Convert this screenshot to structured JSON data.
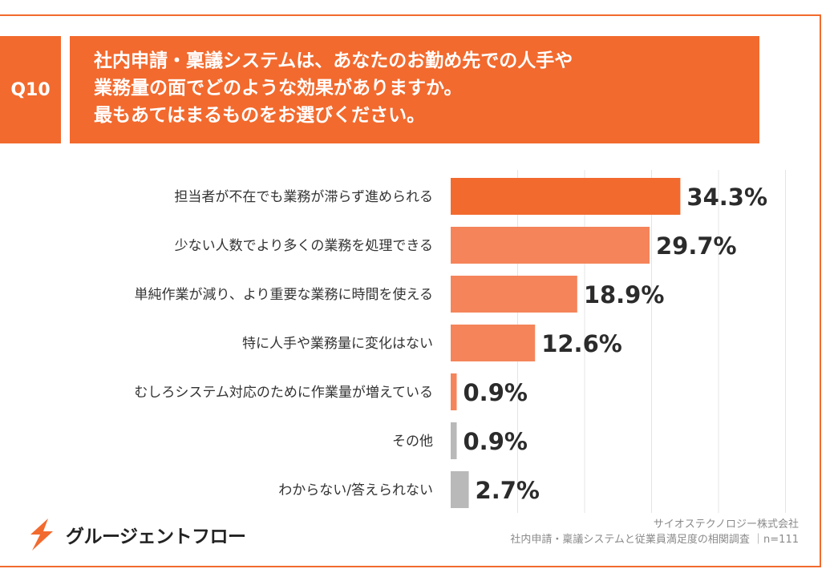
{
  "question": {
    "tag": "Q10",
    "lines": [
      "社内申請・稟議システムは、あなたのお勤め先での人手や",
      "業務量の面でどのような効果がありますか。",
      "最もあてはまるものをお選びください。"
    ]
  },
  "chart_data": {
    "type": "bar",
    "orientation": "horizontal",
    "categories": [
      "担当者が不在でも業務が滞らず進められる",
      "少ない人数でより多くの業務を処理できる",
      "単純作業が減り、より重要な業務に時間を使える",
      "特に人手や業務量に変化はない",
      "むしろシステム対応のために作業量が増えている",
      "その他",
      "わからない/答えられない"
    ],
    "values": [
      34.3,
      29.7,
      18.9,
      12.6,
      0.9,
      0.9,
      2.7
    ],
    "value_labels": [
      "34.3%",
      "29.7%",
      "18.9%",
      "12.6%",
      "0.9%",
      "0.9%",
      "2.7%"
    ],
    "bar_colors": [
      "#f26a2e",
      "#f5845a",
      "#f5845a",
      "#f5845a",
      "#f5845a",
      "#b9b9b9",
      "#b9b9b9"
    ],
    "xlim": [
      0,
      50
    ],
    "grid": true
  },
  "logo": {
    "text": "グルージェントフロー",
    "icon": "bolt-logo-icon",
    "color": "#f26a2e"
  },
  "credit": {
    "company": "サイオステクノロジー株式会社",
    "survey": "社内申請・稟議システムと従業員満足度の相関調査 ｜n=111"
  }
}
